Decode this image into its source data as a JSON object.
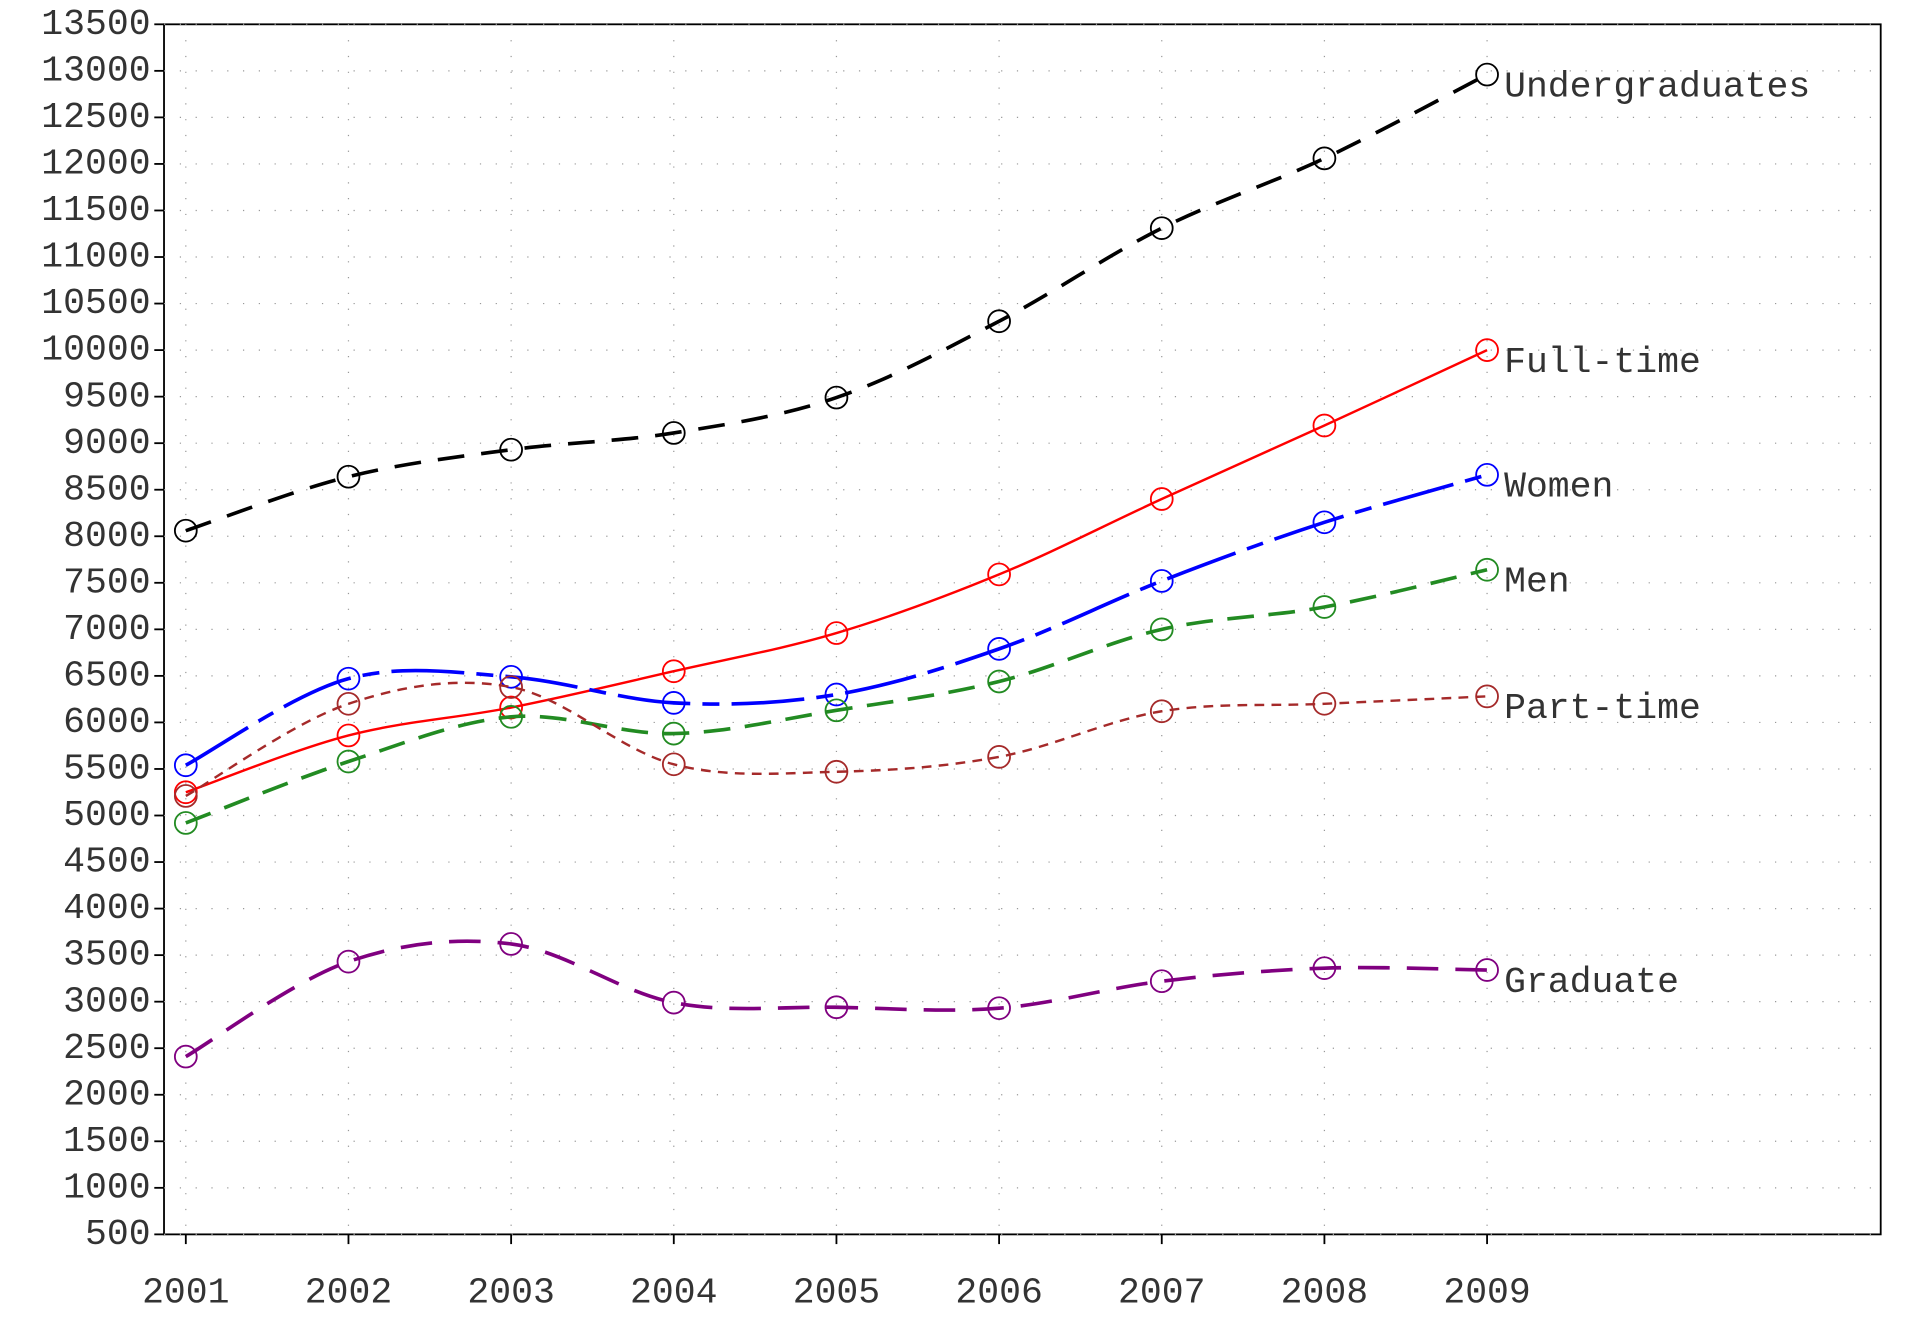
{
  "chart_data": {
    "type": "line",
    "x": [
      2001,
      2002,
      2003,
      2004,
      2005,
      2006,
      2007,
      2008,
      2009
    ],
    "xlim": [
      2000.866,
      2011.42
    ],
    "xticks": [
      2001,
      2002,
      2003,
      2004,
      2005,
      2006,
      2007,
      2008,
      2009
    ],
    "ylim": [
      500,
      13500
    ],
    "yticks": [
      500,
      1000,
      1500,
      2000,
      2500,
      3000,
      3500,
      4000,
      4500,
      5000,
      5500,
      6000,
      6500,
      7000,
      7500,
      8000,
      8500,
      9000,
      9500,
      10000,
      10500,
      11000,
      11500,
      12000,
      12500,
      13000,
      13500
    ],
    "grid": true,
    "series": [
      {
        "name": "Undergraduates",
        "color": "#000000",
        "dash": "22 14",
        "width": 3,
        "values": [
          8060,
          8640,
          8930,
          9110,
          9490,
          10310,
          11310,
          12060,
          12960
        ]
      },
      {
        "name": "Full-time",
        "color": "#ff0000",
        "dash": "none",
        "width": 2,
        "values": [
          5250,
          5860,
          6160,
          6550,
          6960,
          7590,
          8400,
          9190,
          10000
        ]
      },
      {
        "name": "Women",
        "color": "#0000ff",
        "dash": "60 10 14 10",
        "width": 3,
        "values": [
          5540,
          6470,
          6490,
          6210,
          6300,
          6790,
          7520,
          8150,
          8660
        ]
      },
      {
        "name": "Men",
        "color": "#228b22",
        "dash": "22 12",
        "width": 3,
        "values": [
          4920,
          5580,
          6060,
          5880,
          6130,
          6440,
          7000,
          7240,
          7640
        ]
      },
      {
        "name": "Part-time",
        "color": "#a52a2a",
        "dash": "8 6",
        "width": 2,
        "values": [
          5210,
          6200,
          6380,
          5550,
          5470,
          5630,
          6120,
          6200,
          6280
        ]
      },
      {
        "name": "Graduate",
        "color": "#800080",
        "dash": "26 14",
        "width": 3,
        "values": [
          2410,
          3430,
          3620,
          2990,
          2940,
          2930,
          3220,
          3360,
          3340
        ]
      }
    ]
  }
}
